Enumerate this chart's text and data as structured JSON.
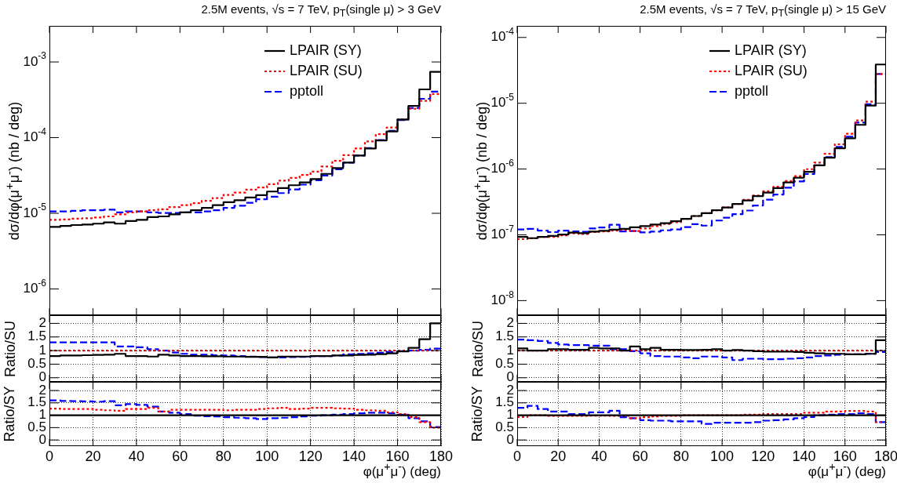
{
  "chart_data": [
    {
      "type": "histogram",
      "title": "2.5M events, √s = 7 TeV, p$_{T}$(single μ) > 3 GeV",
      "ylabel": "dσ/dφ(μ$^{+}$μ$^{-}$) (nb / deg)",
      "bins": [
        0,
        5,
        10,
        15,
        20,
        25,
        30,
        35,
        40,
        45,
        50,
        55,
        60,
        65,
        70,
        75,
        80,
        85,
        90,
        95,
        100,
        105,
        110,
        115,
        120,
        125,
        130,
        135,
        140,
        145,
        150,
        155,
        160,
        165,
        170,
        175,
        180
      ],
      "xlim": [
        0,
        180
      ],
      "xticks": [
        0,
        20,
        40,
        60,
        80,
        100,
        120,
        140,
        160,
        180
      ],
      "log": true,
      "ylim": [
        4.5e-07,
        0.003
      ],
      "yticks": [
        {
          "value": 1e-06,
          "label": "10$^{-6}$"
        },
        {
          "value": 1e-05,
          "label": "10$^{-5}$"
        },
        {
          "value": 0.0001,
          "label": "10$^{-4}$"
        },
        {
          "value": 0.001,
          "label": "10$^{-3}$"
        }
      ],
      "tick_labels": "y",
      "legend": "top right",
      "series": [
        {
          "name": "LPAIR (SY)",
          "color": "#000000",
          "line_style": "solid",
          "values": [
            6.6e-06,
            6.8e-06,
            7e-06,
            7.1e-06,
            7.3e-06,
            7.6e-06,
            7.3e-06,
            7.9e-06,
            8.2e-06,
            8.9e-06,
            9.1e-06,
            9.7e-06,
            1.03e-05,
            1.1e-05,
            1.18e-05,
            1.28e-05,
            1.4e-05,
            1.49e-05,
            1.62e-05,
            1.74e-05,
            1.94e-05,
            2.15e-05,
            2.35e-05,
            2.56e-05,
            2.84e-05,
            3.32e-05,
            3.95e-05,
            4.68e-05,
            5.8e-05,
            7.2e-05,
            9.2e-05,
            0.000121,
            0.000174,
            0.000263,
            0.000434,
            0.00074
          ]
        },
        {
          "name": "LPAIR (SU)",
          "color": "#ff0000",
          "line_style": "dotted",
          "values": [
            8.2e-06,
            8.3e-06,
            8.5e-06,
            8.6e-06,
            8.8e-06,
            9.1e-06,
            9.7e-06,
            1.03e-05,
            1.06e-05,
            1.1e-05,
            1.13e-05,
            1.21e-05,
            1.28e-05,
            1.36e-05,
            1.46e-05,
            1.59e-05,
            1.75e-05,
            1.88e-05,
            2.05e-05,
            2.19e-05,
            2.43e-05,
            2.7e-05,
            2.94e-05,
            3.21e-05,
            3.56e-05,
            4.15e-05,
            4.93e-05,
            5.86e-05,
            7.2e-05,
            8.9e-05,
            0.000111,
            0.000136,
            0.000174,
            0.000241,
            0.000307,
            0.000378
          ]
        },
        {
          "name": "pptoll",
          "color": "#0000ff",
          "line_style": "dashed",
          "values": [
            1.06e-05,
            1.06e-05,
            1.08e-05,
            1.1e-05,
            1.1e-05,
            1.12e-05,
            1.03e-05,
            1.06e-05,
            1.06e-05,
            1.03e-05,
            1.01e-05,
            1.01e-05,
            1.03e-05,
            1.03e-05,
            1.06e-05,
            1.1e-05,
            1.18e-05,
            1.26e-05,
            1.38e-05,
            1.53e-05,
            1.66e-05,
            1.85e-05,
            2.07e-05,
            2.39e-05,
            2.74e-05,
            3.15e-05,
            3.81e-05,
            4.68e-05,
            5.8e-05,
            7.3e-05,
            9.3e-05,
            0.000123,
            0.000171,
            0.000247,
            0.000326,
            0.000405
          ]
        }
      ]
    },
    {
      "type": "histogram",
      "title": "2.5M events, √s = 7 TeV, p$_{T}$(single μ) > 15 GeV",
      "ylabel": "dσ/dφ(μ$^{+}$μ$^{-}$) (nb / deg)",
      "bins": [
        0,
        5,
        10,
        15,
        20,
        25,
        30,
        35,
        40,
        45,
        50,
        55,
        60,
        65,
        70,
        75,
        80,
        85,
        90,
        95,
        100,
        105,
        110,
        115,
        120,
        125,
        130,
        135,
        140,
        145,
        150,
        155,
        160,
        165,
        170,
        175,
        180
      ],
      "xlim": [
        0,
        180
      ],
      "xticks": [
        0,
        20,
        40,
        60,
        80,
        100,
        120,
        140,
        160,
        180
      ],
      "log": true,
      "ylim": [
        6e-09,
        0.00015
      ],
      "yticks": [
        {
          "value": 1e-08,
          "label": "10$^{-8}$"
        },
        {
          "value": 1e-07,
          "label": "10$^{-7}$"
        },
        {
          "value": 1e-06,
          "label": "10$^{-6}$"
        },
        {
          "value": 1e-05,
          "label": "10$^{-5}$"
        },
        {
          "value": 0.0001,
          "label": "10$^{-4}$"
        }
      ],
      "tick_labels": "y",
      "legend": "top right",
      "series": [
        {
          "name": "LPAIR (SY)",
          "color": "#000000",
          "line_style": "solid",
          "values": [
            9.3e-08,
            8.9e-08,
            9.3e-08,
            9.6e-08,
            1.01e-07,
            1.08e-07,
            1.06e-07,
            1.12e-07,
            1.15e-07,
            1.2e-07,
            1.23e-07,
            1.3e-07,
            1.36e-07,
            1.43e-07,
            1.5e-07,
            1.61e-07,
            1.75e-07,
            1.93e-07,
            2.13e-07,
            2.36e-07,
            2.6e-07,
            2.94e-07,
            3.34e-07,
            3.88e-07,
            4.38e-07,
            5.13e-07,
            6.26e-07,
            7.4e-07,
            9.05e-07,
            1.14e-06,
            1.49e-06,
            2.07e-06,
            2.94e-06,
            4.69e-06,
            9.2e-06,
            3.88e-05
          ]
        },
        {
          "name": "LPAIR (SU)",
          "color": "#ff0000",
          "line_style": "dotted",
          "values": [
            8.6e-08,
            8.9e-08,
            9.3e-08,
            9.3e-08,
            9.8e-08,
            1.05e-07,
            1.03e-07,
            1.1e-07,
            1.13e-07,
            1.16e-07,
            1.19e-07,
            1.14e-07,
            1.25e-07,
            1.36e-07,
            1.46e-07,
            1.56e-07,
            1.75e-07,
            1.93e-07,
            2.13e-07,
            2.36e-07,
            2.6e-07,
            2.94e-07,
            3.41e-07,
            3.96e-07,
            4.6e-07,
            5.39e-07,
            6.57e-07,
            7.8e-07,
            9.96e-07,
            1.25e-06,
            1.71e-06,
            2.38e-06,
            3.44e-06,
            5.49e-06,
            1.06e-05,
            2.79e-05
          ]
        },
        {
          "name": "pptoll",
          "color": "#0000ff",
          "line_style": "dashed",
          "values": [
            1.21e-07,
            1.23e-07,
            1.16e-07,
            1.1e-07,
            1.16e-07,
            1.13e-07,
            1.11e-07,
            1.25e-07,
            1.29e-07,
            1.42e-07,
            1.13e-07,
            1.14e-07,
            1.09e-07,
            1.12e-07,
            1.17e-07,
            1.21e-07,
            1.31e-07,
            1.45e-07,
            1.38e-07,
            1.65e-07,
            1.82e-07,
            2.06e-07,
            2.34e-07,
            2.79e-07,
            3.42e-07,
            4.1e-07,
            5.2e-07,
            6.5e-07,
            8.4e-07,
            1.14e-06,
            1.52e-06,
            2.17e-06,
            3.09e-06,
            5.07e-06,
            9.7e-06,
            2.79e-05
          ]
        }
      ]
    },
    {
      "type": "histogram",
      "ylabel": "Ratio/SU",
      "bins": [
        0,
        5,
        10,
        15,
        20,
        25,
        30,
        35,
        40,
        45,
        50,
        55,
        60,
        65,
        70,
        75,
        80,
        85,
        90,
        95,
        100,
        105,
        110,
        115,
        120,
        125,
        130,
        135,
        140,
        145,
        150,
        155,
        160,
        165,
        170,
        175,
        180
      ],
      "xlim": [
        0,
        180
      ],
      "xticks": [
        0,
        20,
        40,
        60,
        80,
        100,
        120,
        140,
        160,
        180
      ],
      "ylim": [
        -0.15,
        2.3
      ],
      "yticks": [
        0,
        0.5,
        1,
        1.5,
        2
      ],
      "grid": true,
      "tick_labels": "y",
      "series": [
        {
          "color": "#000000",
          "line_style": "solid",
          "values": [
            0.8,
            0.82,
            0.82,
            0.83,
            0.84,
            0.85,
            0.88,
            0.8,
            0.8,
            0.78,
            0.85,
            0.82,
            0.8,
            0.8,
            0.79,
            0.79,
            0.78,
            0.78,
            0.77,
            0.77,
            0.75,
            0.78,
            0.78,
            0.78,
            0.8,
            0.8,
            0.82,
            0.82,
            0.84,
            0.85,
            0.87,
            0.9,
            0.97,
            1.1,
            1.42,
            2.0
          ]
        },
        {
          "color": "#ff0000",
          "line_style": "dotted",
          "values": [
            1,
            1,
            1,
            1,
            1,
            1,
            1,
            1,
            1,
            1,
            1,
            1,
            1,
            1,
            1,
            1,
            1,
            1,
            1,
            1,
            1,
            1,
            1,
            1,
            1,
            1,
            1,
            1,
            1,
            1,
            1,
            1,
            1,
            1,
            1,
            1
          ]
        },
        {
          "color": "#0000ff",
          "line_style": "dashed",
          "values": [
            1.3,
            1.3,
            1.3,
            1.3,
            1.3,
            1.3,
            1.15,
            1.15,
            1.12,
            1.05,
            1.0,
            0.93,
            0.88,
            0.85,
            0.85,
            0.83,
            0.82,
            0.8,
            0.78,
            0.76,
            0.75,
            0.75,
            0.76,
            0.77,
            0.8,
            0.8,
            0.82,
            0.86,
            0.88,
            0.9,
            0.92,
            0.95,
            0.98,
            1.0,
            1.03,
            1.07
          ]
        }
      ]
    },
    {
      "type": "histogram",
      "ylabel": "Ratio/SU",
      "bins": [
        0,
        5,
        10,
        15,
        20,
        25,
        30,
        35,
        40,
        45,
        50,
        55,
        60,
        65,
        70,
        75,
        80,
        85,
        90,
        95,
        100,
        105,
        110,
        115,
        120,
        125,
        130,
        135,
        140,
        145,
        150,
        155,
        160,
        165,
        170,
        175,
        180
      ],
      "xlim": [
        0,
        180
      ],
      "xticks": [
        0,
        20,
        40,
        60,
        80,
        100,
        120,
        140,
        160,
        180
      ],
      "ylim": [
        -0.15,
        2.3
      ],
      "yticks": [
        0,
        0.5,
        1,
        1.5,
        2
      ],
      "grid": true,
      "tick_labels": "y",
      "series": [
        {
          "color": "#000000",
          "line_style": "solid",
          "values": [
            1.08,
            1.0,
            1.0,
            1.05,
            1.05,
            1.03,
            1.03,
            1.1,
            1.08,
            1.08,
            1.0,
            1.15,
            1.05,
            1.1,
            1.03,
            1.03,
            1.02,
            1.02,
            1.03,
            1.05,
            1.0,
            1.02,
            1.0,
            0.98,
            0.96,
            0.96,
            0.96,
            0.95,
            0.92,
            0.9,
            0.88,
            0.88,
            0.86,
            0.86,
            0.88,
            1.38
          ]
        },
        {
          "color": "#ff0000",
          "line_style": "dotted",
          "values": [
            1,
            1,
            1,
            1,
            1,
            1,
            1,
            1,
            1,
            1,
            1,
            1,
            1,
            1,
            1,
            1,
            1,
            1,
            1,
            1,
            1,
            1,
            1,
            1,
            1,
            1,
            1,
            1,
            1,
            1,
            1,
            1,
            1,
            1,
            1,
            1
          ]
        },
        {
          "color": "#0000ff",
          "line_style": "dashed",
          "values": [
            1.4,
            1.38,
            1.35,
            1.28,
            1.22,
            1.2,
            1.2,
            1.18,
            1.18,
            1.05,
            1.05,
            0.98,
            0.9,
            0.8,
            0.78,
            0.78,
            0.75,
            0.72,
            0.78,
            0.78,
            0.75,
            0.65,
            0.7,
            0.7,
            0.68,
            0.68,
            0.7,
            0.72,
            0.75,
            0.8,
            0.82,
            0.85,
            0.86,
            0.86,
            0.88,
            0.95
          ]
        }
      ]
    },
    {
      "type": "histogram",
      "ylabel": "Ratio/SY",
      "xlabel": "φ(μ$^{+}$μ$^{-}$) (deg)",
      "bins": [
        0,
        5,
        10,
        15,
        20,
        25,
        30,
        35,
        40,
        45,
        50,
        55,
        60,
        65,
        70,
        75,
        80,
        85,
        90,
        95,
        100,
        105,
        110,
        115,
        120,
        125,
        130,
        135,
        140,
        145,
        150,
        155,
        160,
        165,
        170,
        175,
        180
      ],
      "xlim": [
        0,
        180
      ],
      "xticks": [
        0,
        20,
        40,
        60,
        80,
        100,
        120,
        140,
        160,
        180
      ],
      "ylim": [
        -0.25,
        2.35
      ],
      "yticks": [
        0,
        0.5,
        1,
        1.5,
        2
      ],
      "grid": true,
      "series": [
        {
          "color": "#000000",
          "line_style": "solid",
          "values": [
            1,
            1,
            1,
            1,
            1,
            1,
            1,
            1,
            1,
            1,
            1,
            1,
            1,
            1,
            1,
            1,
            1,
            1,
            1,
            1,
            1,
            1,
            1,
            1,
            1,
            1,
            1,
            1,
            1,
            1,
            1,
            1,
            1,
            1,
            1,
            1
          ]
        },
        {
          "color": "#ff0000",
          "line_style": "dotted",
          "values": [
            1.27,
            1.25,
            1.25,
            1.25,
            1.22,
            1.2,
            1.18,
            1.25,
            1.25,
            1.3,
            1.15,
            1.22,
            1.22,
            1.22,
            1.22,
            1.22,
            1.2,
            1.22,
            1.22,
            1.25,
            1.28,
            1.3,
            1.25,
            1.27,
            1.3,
            1.3,
            1.28,
            1.27,
            1.22,
            1.2,
            1.18,
            1.12,
            1.05,
            0.92,
            0.72,
            0.5
          ]
        },
        {
          "color": "#0000ff",
          "line_style": "dashed",
          "values": [
            1.6,
            1.58,
            1.57,
            1.56,
            1.55,
            1.57,
            1.4,
            1.45,
            1.42,
            1.35,
            1.15,
            1.1,
            1.05,
            0.98,
            0.96,
            0.95,
            0.92,
            0.9,
            0.88,
            0.85,
            0.88,
            0.9,
            0.92,
            0.95,
            0.98,
            1.0,
            1.02,
            1.05,
            1.08,
            1.1,
            1.1,
            1.08,
            1.02,
            0.88,
            0.75,
            0.52
          ]
        }
      ]
    },
    {
      "type": "histogram",
      "ylabel": "Ratio/SY",
      "xlabel": "φ(μ$^{+}$μ$^{-}$) (deg)",
      "bins": [
        0,
        5,
        10,
        15,
        20,
        25,
        30,
        35,
        40,
        45,
        50,
        55,
        60,
        65,
        70,
        75,
        80,
        85,
        90,
        95,
        100,
        105,
        110,
        115,
        120,
        125,
        130,
        135,
        140,
        145,
        150,
        155,
        160,
        165,
        170,
        175,
        180
      ],
      "xlim": [
        0,
        180
      ],
      "xticks": [
        0,
        20,
        40,
        60,
        80,
        100,
        120,
        140,
        160,
        180
      ],
      "ylim": [
        -0.25,
        2.35
      ],
      "yticks": [
        0,
        0.5,
        1,
        1.5,
        2
      ],
      "grid": true,
      "series": [
        {
          "color": "#000000",
          "line_style": "solid",
          "values": [
            1,
            1,
            1,
            1,
            1,
            1,
            1,
            1,
            1,
            1,
            1,
            1,
            1,
            1,
            1,
            1,
            1,
            1,
            1,
            1,
            1,
            1,
            1,
            1,
            1,
            1,
            1,
            1,
            1,
            1,
            1,
            1,
            1,
            1,
            1,
            1
          ]
        },
        {
          "color": "#ff0000",
          "line_style": "dotted",
          "values": [
            0.93,
            1.0,
            1.0,
            0.97,
            0.97,
            0.97,
            0.97,
            0.98,
            0.98,
            0.97,
            0.97,
            0.88,
            0.92,
            0.95,
            0.97,
            0.97,
            1.0,
            1.0,
            1.0,
            1.0,
            1.0,
            1.0,
            1.02,
            1.02,
            1.05,
            1.05,
            1.05,
            1.05,
            1.1,
            1.1,
            1.15,
            1.15,
            1.17,
            1.17,
            1.15,
            0.72
          ]
        },
        {
          "color": "#0000ff",
          "line_style": "dashed",
          "values": [
            1.3,
            1.38,
            1.25,
            1.15,
            1.15,
            1.05,
            1.05,
            1.12,
            1.12,
            1.18,
            0.92,
            0.88,
            0.8,
            0.78,
            0.78,
            0.75,
            0.75,
            0.75,
            0.65,
            0.7,
            0.7,
            0.7,
            0.7,
            0.72,
            0.78,
            0.8,
            0.83,
            0.88,
            0.93,
            1.0,
            1.02,
            1.05,
            1.05,
            1.08,
            1.05,
            0.72
          ]
        }
      ]
    }
  ]
}
